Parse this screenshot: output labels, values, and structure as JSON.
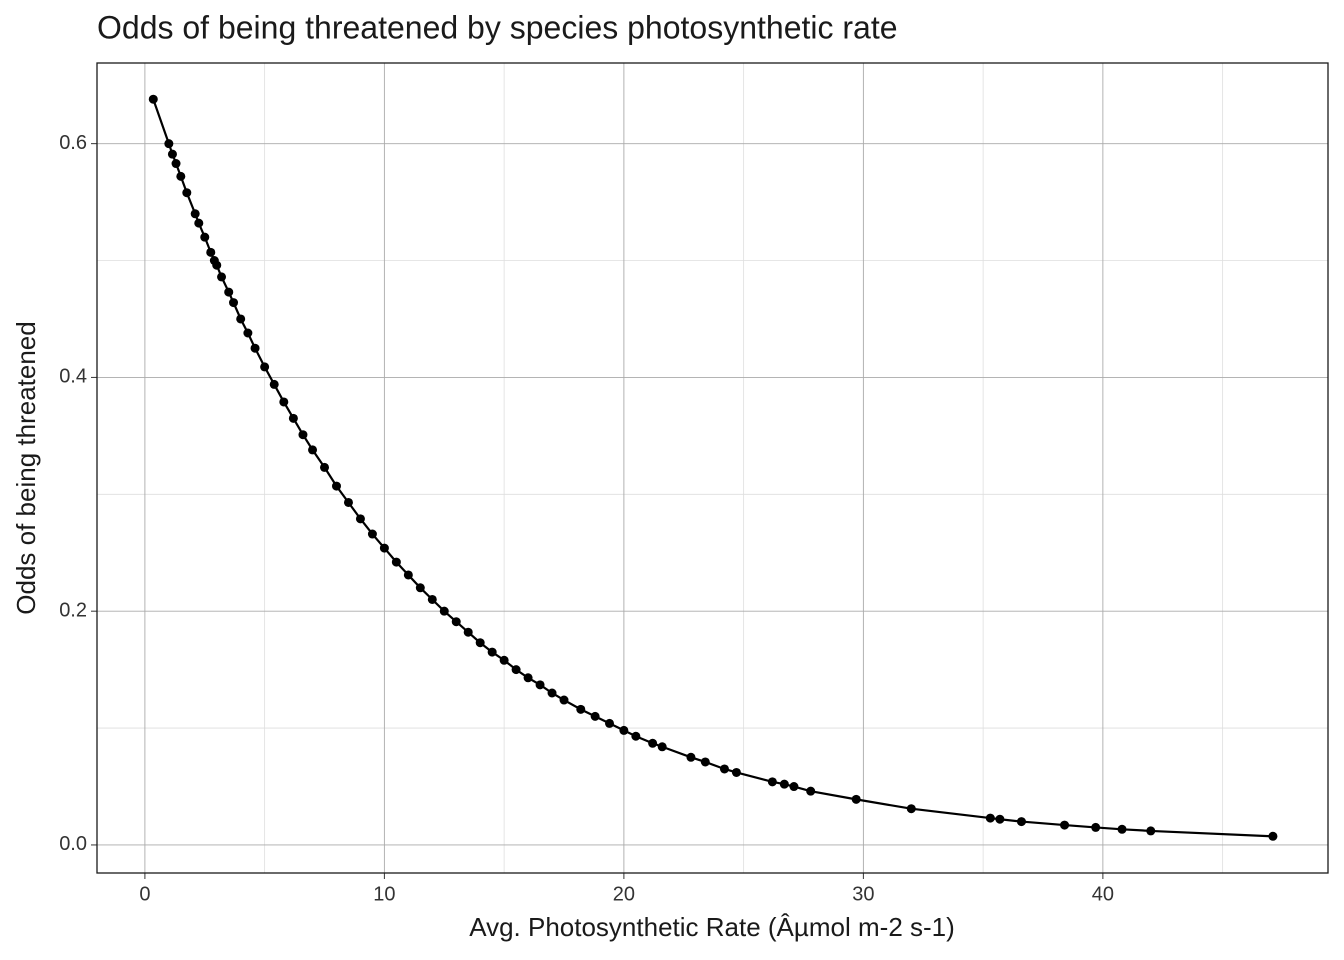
{
  "chart_data": {
    "type": "scatter-line",
    "title": "Odds of being threatened by species photosynthetic rate",
    "x_label": "Avg. Photosynthetic Rate (Âµmol m-2 s-1)",
    "y_label": "Odds of being threatened",
    "color": "#000000",
    "grid": true,
    "xlim": [
      -2.0,
      49.4
    ],
    "ylim": [
      -0.024,
      0.669
    ],
    "xticks": [
      0,
      10,
      20,
      30,
      40
    ],
    "x_minor_grid": [
      5,
      15,
      25,
      35,
      45
    ],
    "yticks": [
      {
        "value": 0,
        "label": "0.0"
      },
      0.2,
      0.4,
      0.6
    ],
    "y_minor_grid": [
      0.1,
      0.3,
      0.5
    ],
    "x": [
      0.35,
      1.0,
      1.15,
      1.3,
      1.5,
      1.75,
      2.1,
      2.25,
      2.5,
      2.75,
      2.9,
      3.0,
      3.2,
      3.5,
      3.7,
      4.0,
      4.3,
      4.6,
      5.0,
      5.4,
      5.8,
      6.2,
      6.6,
      7.0,
      7.5,
      8.0,
      8.5,
      9.0,
      9.5,
      10.0,
      10.5,
      11.0,
      11.5,
      12.0,
      12.5,
      13.0,
      13.5,
      14.0,
      14.5,
      15.0,
      15.5,
      16.0,
      16.5,
      17.0,
      17.5,
      18.2,
      18.8,
      19.4,
      20.0,
      20.5,
      21.2,
      21.6,
      22.8,
      23.4,
      24.2,
      24.7,
      26.2,
      26.7,
      27.1,
      27.8,
      29.7,
      32.0,
      35.3,
      35.7,
      36.6,
      38.4,
      39.7,
      40.8,
      42.0,
      47.1
    ],
    "values": [
      0.638,
      0.6,
      0.591,
      0.583,
      0.572,
      0.558,
      0.54,
      0.532,
      0.52,
      0.507,
      0.5,
      0.496,
      0.486,
      0.473,
      0.464,
      0.45,
      0.438,
      0.425,
      0.409,
      0.394,
      0.379,
      0.365,
      0.351,
      0.338,
      0.323,
      0.307,
      0.293,
      0.279,
      0.266,
      0.254,
      0.242,
      0.231,
      0.22,
      0.21,
      0.2,
      0.191,
      0.182,
      0.173,
      0.165,
      0.158,
      0.15,
      0.143,
      0.137,
      0.13,
      0.124,
      0.116,
      0.11,
      0.104,
      0.098,
      0.093,
      0.087,
      0.084,
      0.075,
      0.071,
      0.065,
      0.062,
      0.054,
      0.052,
      0.05,
      0.046,
      0.039,
      0.031,
      0.023,
      0.022,
      0.02,
      0.017,
      0.015,
      0.0134,
      0.012,
      0.0074
    ]
  }
}
